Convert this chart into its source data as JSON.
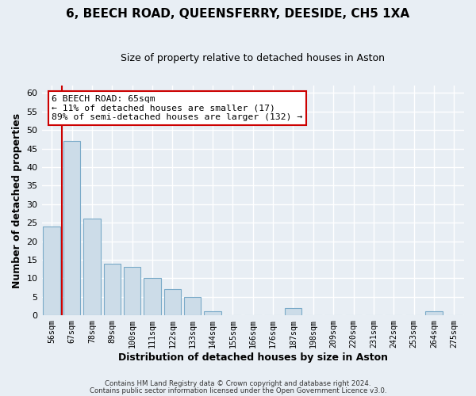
{
  "title": "6, BEECH ROAD, QUEENSFERRY, DEESIDE, CH5 1XA",
  "subtitle": "Size of property relative to detached houses in Aston",
  "xlabel": "Distribution of detached houses by size in Aston",
  "ylabel": "Number of detached properties",
  "bar_labels": [
    "56sqm",
    "67sqm",
    "78sqm",
    "89sqm",
    "100sqm",
    "111sqm",
    "122sqm",
    "133sqm",
    "144sqm",
    "155sqm",
    "166sqm",
    "176sqm",
    "187sqm",
    "198sqm",
    "209sqm",
    "220sqm",
    "231sqm",
    "242sqm",
    "253sqm",
    "264sqm",
    "275sqm"
  ],
  "bar_values": [
    24,
    47,
    26,
    14,
    13,
    10,
    7,
    5,
    1,
    0,
    0,
    0,
    2,
    0,
    0,
    0,
    0,
    0,
    0,
    1,
    0
  ],
  "bar_color": "#ccdce8",
  "bar_edge_color": "#7aaac8",
  "highlight_line_color": "#cc0000",
  "annotation_title": "6 BEECH ROAD: 65sqm",
  "annotation_line1": "← 11% of detached houses are smaller (17)",
  "annotation_line2": "89% of semi-detached houses are larger (132) →",
  "annotation_box_color": "#ffffff",
  "annotation_box_edge": "#cc0000",
  "ylim": [
    0,
    62
  ],
  "yticks": [
    0,
    5,
    10,
    15,
    20,
    25,
    30,
    35,
    40,
    45,
    50,
    55,
    60
  ],
  "background_color": "#e8eef4",
  "grid_color": "#ffffff",
  "footer1": "Contains HM Land Registry data © Crown copyright and database right 2024.",
  "footer2": "Contains public sector information licensed under the Open Government Licence v3.0."
}
